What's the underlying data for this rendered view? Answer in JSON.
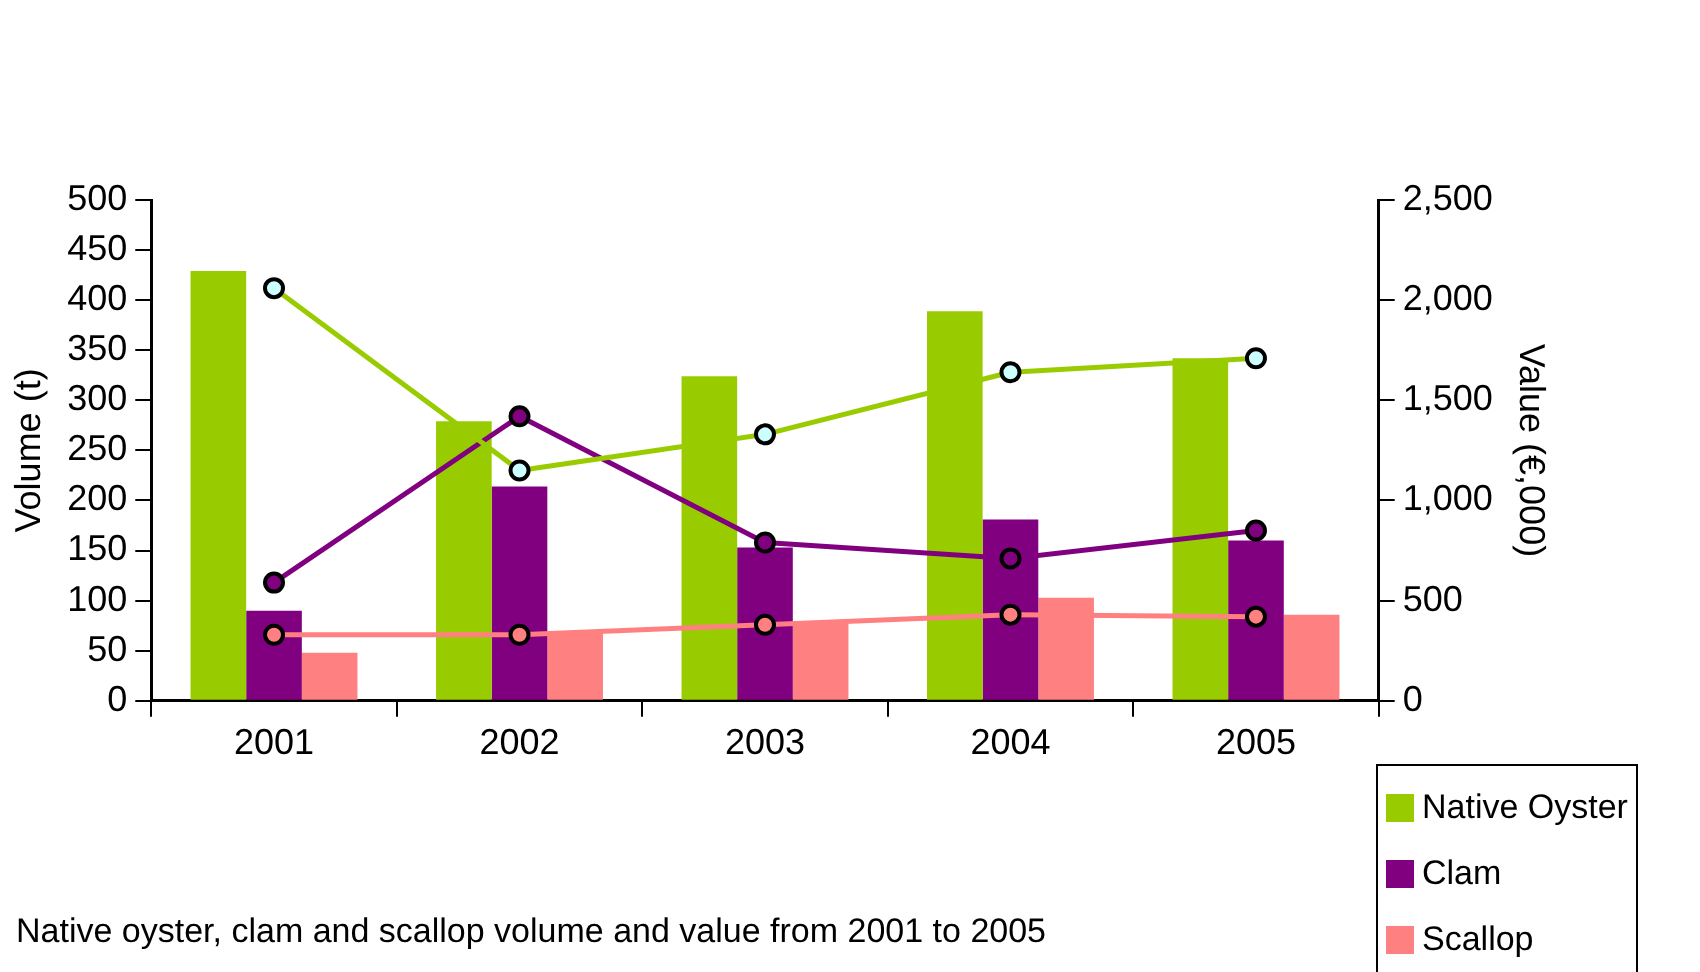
{
  "chart_data": {
    "type": "bar",
    "ylabel": "Volume (t)",
    "y2label": "Value (€,000)",
    "categories": [
      "2001",
      "2002",
      "2003",
      "2004",
      "2005"
    ],
    "series": [
      {
        "name": "Native Oyster",
        "color": "#99cc00",
        "values": [
          429,
          279,
          324,
          389,
          342
        ]
      },
      {
        "name": "Clam",
        "color": "#800080",
        "values": [
          90,
          214,
          153,
          181,
          160
        ]
      },
      {
        "name": "Scallop",
        "color": "#ff8080",
        "values": [
          48,
          69,
          78,
          103,
          86
        ]
      },
      {
        "type": "line",
        "axis": "y2",
        "color": "#99cc00",
        "marker": "circle",
        "values": [
          2060,
          1150,
          1330,
          1640,
          1710
        ]
      },
      {
        "type": "line",
        "axis": "y2",
        "color": "#800080",
        "marker": "circle",
        "values": [
          590,
          1420,
          790,
          710,
          850
        ]
      },
      {
        "type": "line",
        "axis": "y2",
        "color": "#ff8080",
        "marker": "circle",
        "values": [
          330,
          330,
          380,
          430,
          420
        ]
      }
    ],
    "ylim": [
      0,
      500
    ],
    "yticks": [
      0,
      50,
      100,
      150,
      200,
      250,
      300,
      350,
      400,
      450,
      500
    ],
    "y2lim": [
      0,
      2500
    ],
    "y2ticks": [
      {
        "value": 0,
        "label": "0"
      },
      {
        "value": 500,
        "label": "500"
      },
      {
        "value": 1000,
        "label": "1,000"
      },
      {
        "value": 1500,
        "label": "1,500"
      },
      {
        "value": 2000,
        "label": "2,000"
      },
      {
        "value": 2500,
        "label": "2,500"
      }
    ],
    "grid": false,
    "legend": "bottom right",
    "line_style": "solid",
    "annotations": [
      "Native oyster, clam and scallop volume and value from 2001 to 2005"
    ]
  }
}
